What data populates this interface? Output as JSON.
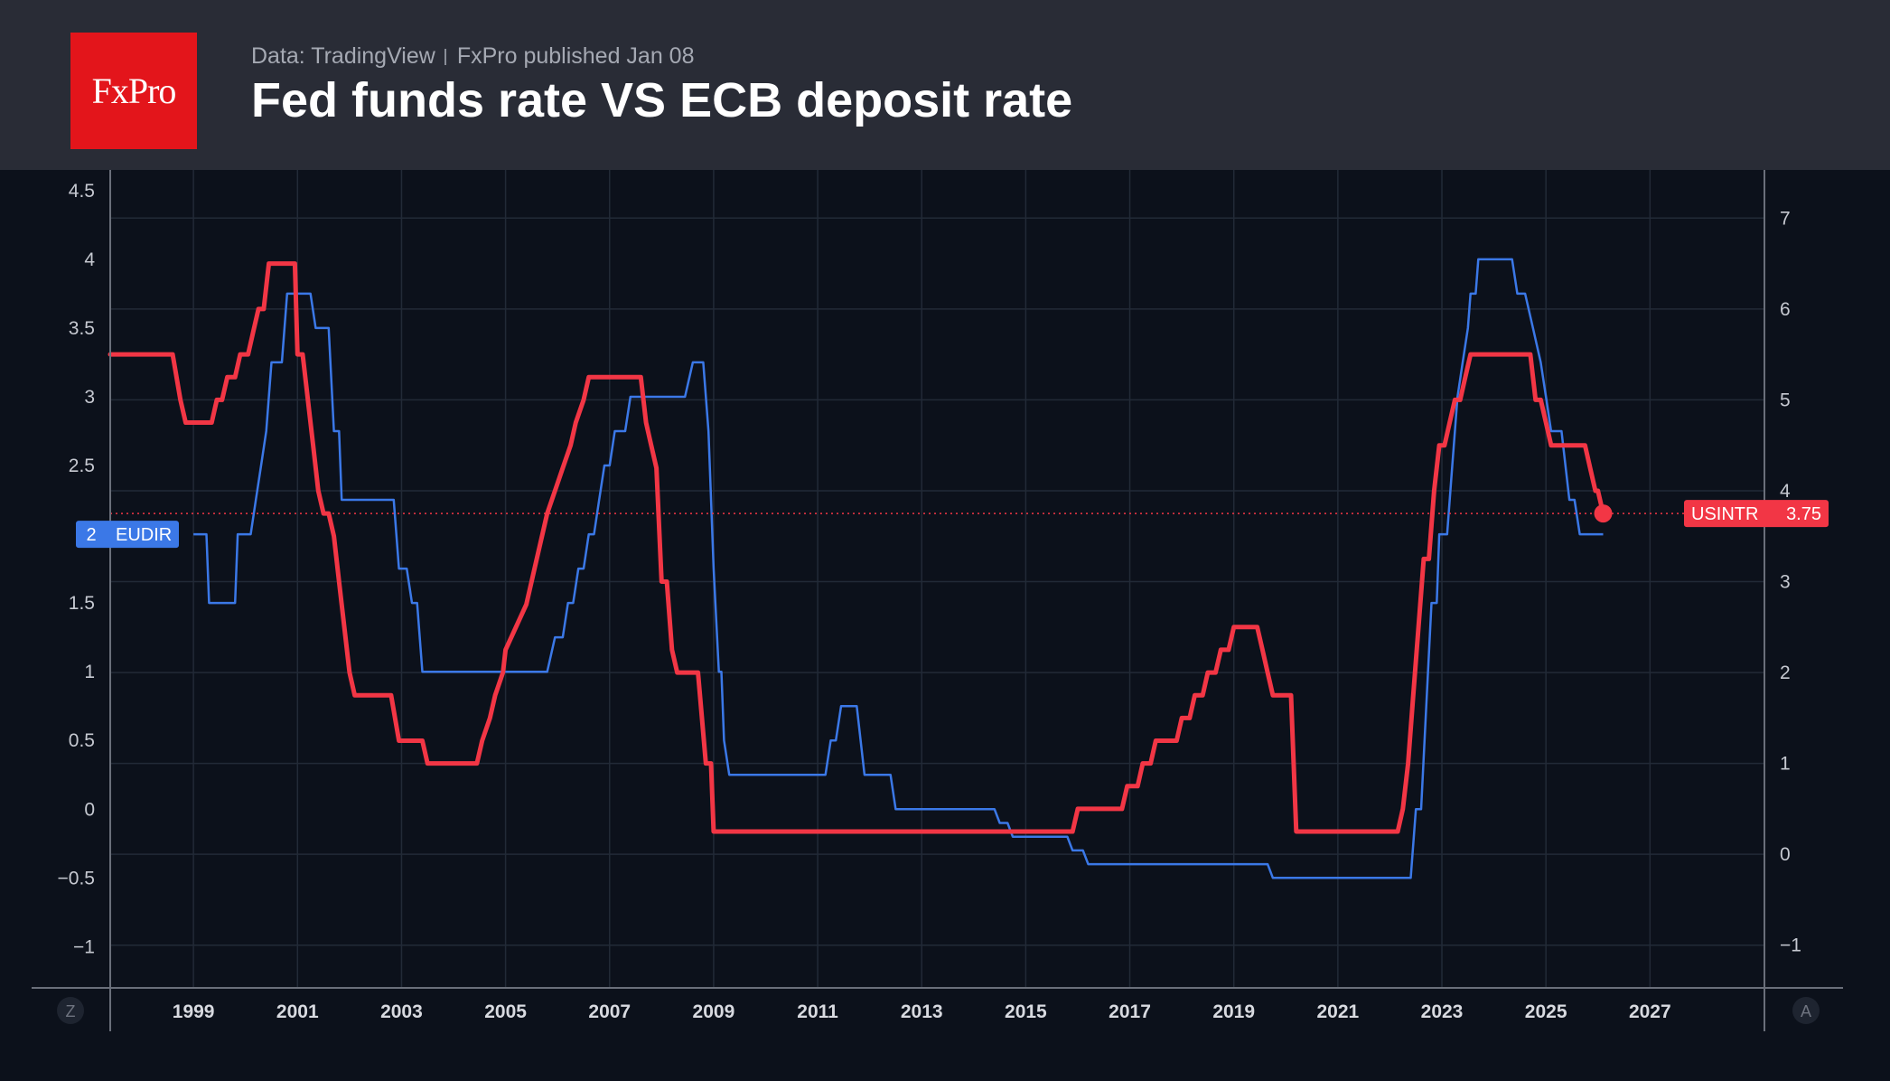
{
  "header": {
    "logo_text": "FxPro",
    "source": "Data: TradingView",
    "published": "FxPro published Jan 08",
    "title": "Fed funds rate VS ECB deposit rate"
  },
  "colors": {
    "background": "#0c111b",
    "header": "#292c36",
    "logo": "#e3151b",
    "eudir": "#3b78e7",
    "usintr": "#f23645"
  },
  "corner_buttons": {
    "left": "Z",
    "right": "A"
  },
  "chart_data": {
    "type": "line",
    "x_ticks": [
      "1999",
      "2001",
      "2003",
      "2005",
      "2007",
      "2009",
      "2011",
      "2013",
      "2015",
      "2017",
      "2019",
      "2021",
      "2023",
      "2025",
      "2027"
    ],
    "xlim": [
      1997.4,
      2029.2
    ],
    "left_axis": {
      "ylim": [
        -1.3,
        4.65
      ],
      "ticks": [
        "4.5",
        "4",
        "3.5",
        "3",
        "2.5",
        "2",
        "1.5",
        "1",
        "0.5",
        "0",
        "−0.5",
        "−1"
      ]
    },
    "right_axis": {
      "ylim": [
        -1.47,
        7.53
      ],
      "ticks": [
        "7",
        "6",
        "5",
        "4",
        "3",
        "2",
        "1",
        "0",
        "−1"
      ]
    },
    "grid": true,
    "series": [
      {
        "name": "EUDIR",
        "axis": "left",
        "color": "#3b78e7",
        "last_value": "2",
        "points": [
          [
            1999.0,
            2.0
          ],
          [
            1999.25,
            2.0
          ],
          [
            1999.3,
            1.5
          ],
          [
            1999.8,
            1.5
          ],
          [
            1999.85,
            2.0
          ],
          [
            2000.1,
            2.0
          ],
          [
            2000.2,
            2.25
          ],
          [
            2000.3,
            2.5
          ],
          [
            2000.4,
            2.75
          ],
          [
            2000.5,
            3.25
          ],
          [
            2000.7,
            3.25
          ],
          [
            2000.8,
            3.75
          ],
          [
            2001.25,
            3.75
          ],
          [
            2001.35,
            3.5
          ],
          [
            2001.6,
            3.5
          ],
          [
            2001.7,
            2.75
          ],
          [
            2001.8,
            2.75
          ],
          [
            2001.85,
            2.25
          ],
          [
            2002.85,
            2.25
          ],
          [
            2002.95,
            1.75
          ],
          [
            2003.1,
            1.75
          ],
          [
            2003.2,
            1.5
          ],
          [
            2003.3,
            1.5
          ],
          [
            2003.4,
            1.0
          ],
          [
            2005.8,
            1.0
          ],
          [
            2005.95,
            1.25
          ],
          [
            2006.1,
            1.25
          ],
          [
            2006.2,
            1.5
          ],
          [
            2006.3,
            1.5
          ],
          [
            2006.4,
            1.75
          ],
          [
            2006.5,
            1.75
          ],
          [
            2006.6,
            2.0
          ],
          [
            2006.7,
            2.0
          ],
          [
            2006.8,
            2.25
          ],
          [
            2006.9,
            2.5
          ],
          [
            2007.0,
            2.5
          ],
          [
            2007.1,
            2.75
          ],
          [
            2007.3,
            2.75
          ],
          [
            2007.4,
            3.0
          ],
          [
            2008.45,
            3.0
          ],
          [
            2008.6,
            3.25
          ],
          [
            2008.8,
            3.25
          ],
          [
            2008.9,
            2.75
          ],
          [
            2009.0,
            1.75
          ],
          [
            2009.1,
            1.0
          ],
          [
            2009.15,
            1.0
          ],
          [
            2009.2,
            0.5
          ],
          [
            2009.3,
            0.25
          ],
          [
            2011.15,
            0.25
          ],
          [
            2011.25,
            0.5
          ],
          [
            2011.35,
            0.5
          ],
          [
            2011.45,
            0.75
          ],
          [
            2011.75,
            0.75
          ],
          [
            2011.9,
            0.25
          ],
          [
            2012.4,
            0.25
          ],
          [
            2012.5,
            0.0
          ],
          [
            2014.4,
            0.0
          ],
          [
            2014.5,
            -0.1
          ],
          [
            2014.65,
            -0.1
          ],
          [
            2014.75,
            -0.2
          ],
          [
            2015.8,
            -0.2
          ],
          [
            2015.9,
            -0.3
          ],
          [
            2016.1,
            -0.3
          ],
          [
            2016.2,
            -0.4
          ],
          [
            2019.65,
            -0.4
          ],
          [
            2019.75,
            -0.5
          ],
          [
            2022.4,
            -0.5
          ],
          [
            2022.5,
            0.0
          ],
          [
            2022.6,
            0.0
          ],
          [
            2022.7,
            0.75
          ],
          [
            2022.8,
            1.5
          ],
          [
            2022.9,
            1.5
          ],
          [
            2022.95,
            2.0
          ],
          [
            2023.1,
            2.0
          ],
          [
            2023.2,
            2.5
          ],
          [
            2023.3,
            3.0
          ],
          [
            2023.4,
            3.25
          ],
          [
            2023.5,
            3.5
          ],
          [
            2023.55,
            3.75
          ],
          [
            2023.65,
            3.75
          ],
          [
            2023.7,
            4.0
          ],
          [
            2024.35,
            4.0
          ],
          [
            2024.45,
            3.75
          ],
          [
            2024.6,
            3.75
          ],
          [
            2024.75,
            3.5
          ],
          [
            2024.9,
            3.25
          ],
          [
            2025.0,
            3.0
          ],
          [
            2025.1,
            2.75
          ],
          [
            2025.3,
            2.75
          ],
          [
            2025.45,
            2.25
          ],
          [
            2025.55,
            2.25
          ],
          [
            2025.65,
            2.0
          ],
          [
            2026.1,
            2.0
          ]
        ]
      },
      {
        "name": "USINTR",
        "axis": "right",
        "color": "#f23645",
        "last_value": "3.75",
        "points": [
          [
            1997.4,
            5.5
          ],
          [
            1998.6,
            5.5
          ],
          [
            1998.75,
            5.0
          ],
          [
            1998.85,
            4.75
          ],
          [
            1999.35,
            4.75
          ],
          [
            1999.45,
            5.0
          ],
          [
            1999.55,
            5.0
          ],
          [
            1999.65,
            5.25
          ],
          [
            1999.8,
            5.25
          ],
          [
            1999.9,
            5.5
          ],
          [
            2000.05,
            5.5
          ],
          [
            2000.15,
            5.75
          ],
          [
            2000.25,
            6.0
          ],
          [
            2000.35,
            6.0
          ],
          [
            2000.45,
            6.5
          ],
          [
            2000.95,
            6.5
          ],
          [
            2001.0,
            5.5
          ],
          [
            2001.1,
            5.5
          ],
          [
            2001.2,
            5.0
          ],
          [
            2001.3,
            4.5
          ],
          [
            2001.4,
            4.0
          ],
          [
            2001.5,
            3.75
          ],
          [
            2001.6,
            3.75
          ],
          [
            2001.7,
            3.5
          ],
          [
            2001.8,
            3.0
          ],
          [
            2001.9,
            2.5
          ],
          [
            2002.0,
            2.0
          ],
          [
            2002.1,
            1.75
          ],
          [
            2002.8,
            1.75
          ],
          [
            2002.95,
            1.25
          ],
          [
            2003.4,
            1.25
          ],
          [
            2003.5,
            1.0
          ],
          [
            2004.45,
            1.0
          ],
          [
            2004.55,
            1.25
          ],
          [
            2004.7,
            1.5
          ],
          [
            2004.8,
            1.75
          ],
          [
            2004.95,
            2.0
          ],
          [
            2005.0,
            2.25
          ],
          [
            2005.2,
            2.5
          ],
          [
            2005.4,
            2.75
          ],
          [
            2005.6,
            3.25
          ],
          [
            2005.8,
            3.75
          ],
          [
            2005.95,
            4.0
          ],
          [
            2006.1,
            4.25
          ],
          [
            2006.25,
            4.5
          ],
          [
            2006.35,
            4.75
          ],
          [
            2006.5,
            5.0
          ],
          [
            2006.6,
            5.25
          ],
          [
            2007.6,
            5.25
          ],
          [
            2007.7,
            4.75
          ],
          [
            2007.8,
            4.5
          ],
          [
            2007.9,
            4.25
          ],
          [
            2008.0,
            3.0
          ],
          [
            2008.1,
            3.0
          ],
          [
            2008.2,
            2.25
          ],
          [
            2008.3,
            2.0
          ],
          [
            2008.7,
            2.0
          ],
          [
            2008.85,
            1.0
          ],
          [
            2008.95,
            1.0
          ],
          [
            2009.0,
            0.25
          ],
          [
            2015.9,
            0.25
          ],
          [
            2016.0,
            0.5
          ],
          [
            2016.85,
            0.5
          ],
          [
            2016.95,
            0.75
          ],
          [
            2017.15,
            0.75
          ],
          [
            2017.25,
            1.0
          ],
          [
            2017.4,
            1.0
          ],
          [
            2017.5,
            1.25
          ],
          [
            2017.9,
            1.25
          ],
          [
            2018.0,
            1.5
          ],
          [
            2018.15,
            1.5
          ],
          [
            2018.25,
            1.75
          ],
          [
            2018.4,
            1.75
          ],
          [
            2018.5,
            2.0
          ],
          [
            2018.65,
            2.0
          ],
          [
            2018.75,
            2.25
          ],
          [
            2018.9,
            2.25
          ],
          [
            2019.0,
            2.5
          ],
          [
            2019.45,
            2.5
          ],
          [
            2019.55,
            2.25
          ],
          [
            2019.65,
            2.0
          ],
          [
            2019.75,
            1.75
          ],
          [
            2020.1,
            1.75
          ],
          [
            2020.2,
            0.25
          ],
          [
            2022.15,
            0.25
          ],
          [
            2022.25,
            0.5
          ],
          [
            2022.35,
            1.0
          ],
          [
            2022.45,
            1.75
          ],
          [
            2022.55,
            2.5
          ],
          [
            2022.65,
            3.25
          ],
          [
            2022.75,
            3.25
          ],
          [
            2022.85,
            4.0
          ],
          [
            2022.95,
            4.5
          ],
          [
            2023.05,
            4.5
          ],
          [
            2023.15,
            4.75
          ],
          [
            2023.25,
            5.0
          ],
          [
            2023.35,
            5.0
          ],
          [
            2023.45,
            5.25
          ],
          [
            2023.55,
            5.5
          ],
          [
            2024.7,
            5.5
          ],
          [
            2024.8,
            5.0
          ],
          [
            2024.9,
            5.0
          ],
          [
            2025.0,
            4.75
          ],
          [
            2025.1,
            4.5
          ],
          [
            2025.75,
            4.5
          ],
          [
            2025.85,
            4.25
          ],
          [
            2025.95,
            4.0
          ],
          [
            2026.0,
            4.0
          ],
          [
            2026.1,
            3.75
          ]
        ]
      }
    ]
  }
}
